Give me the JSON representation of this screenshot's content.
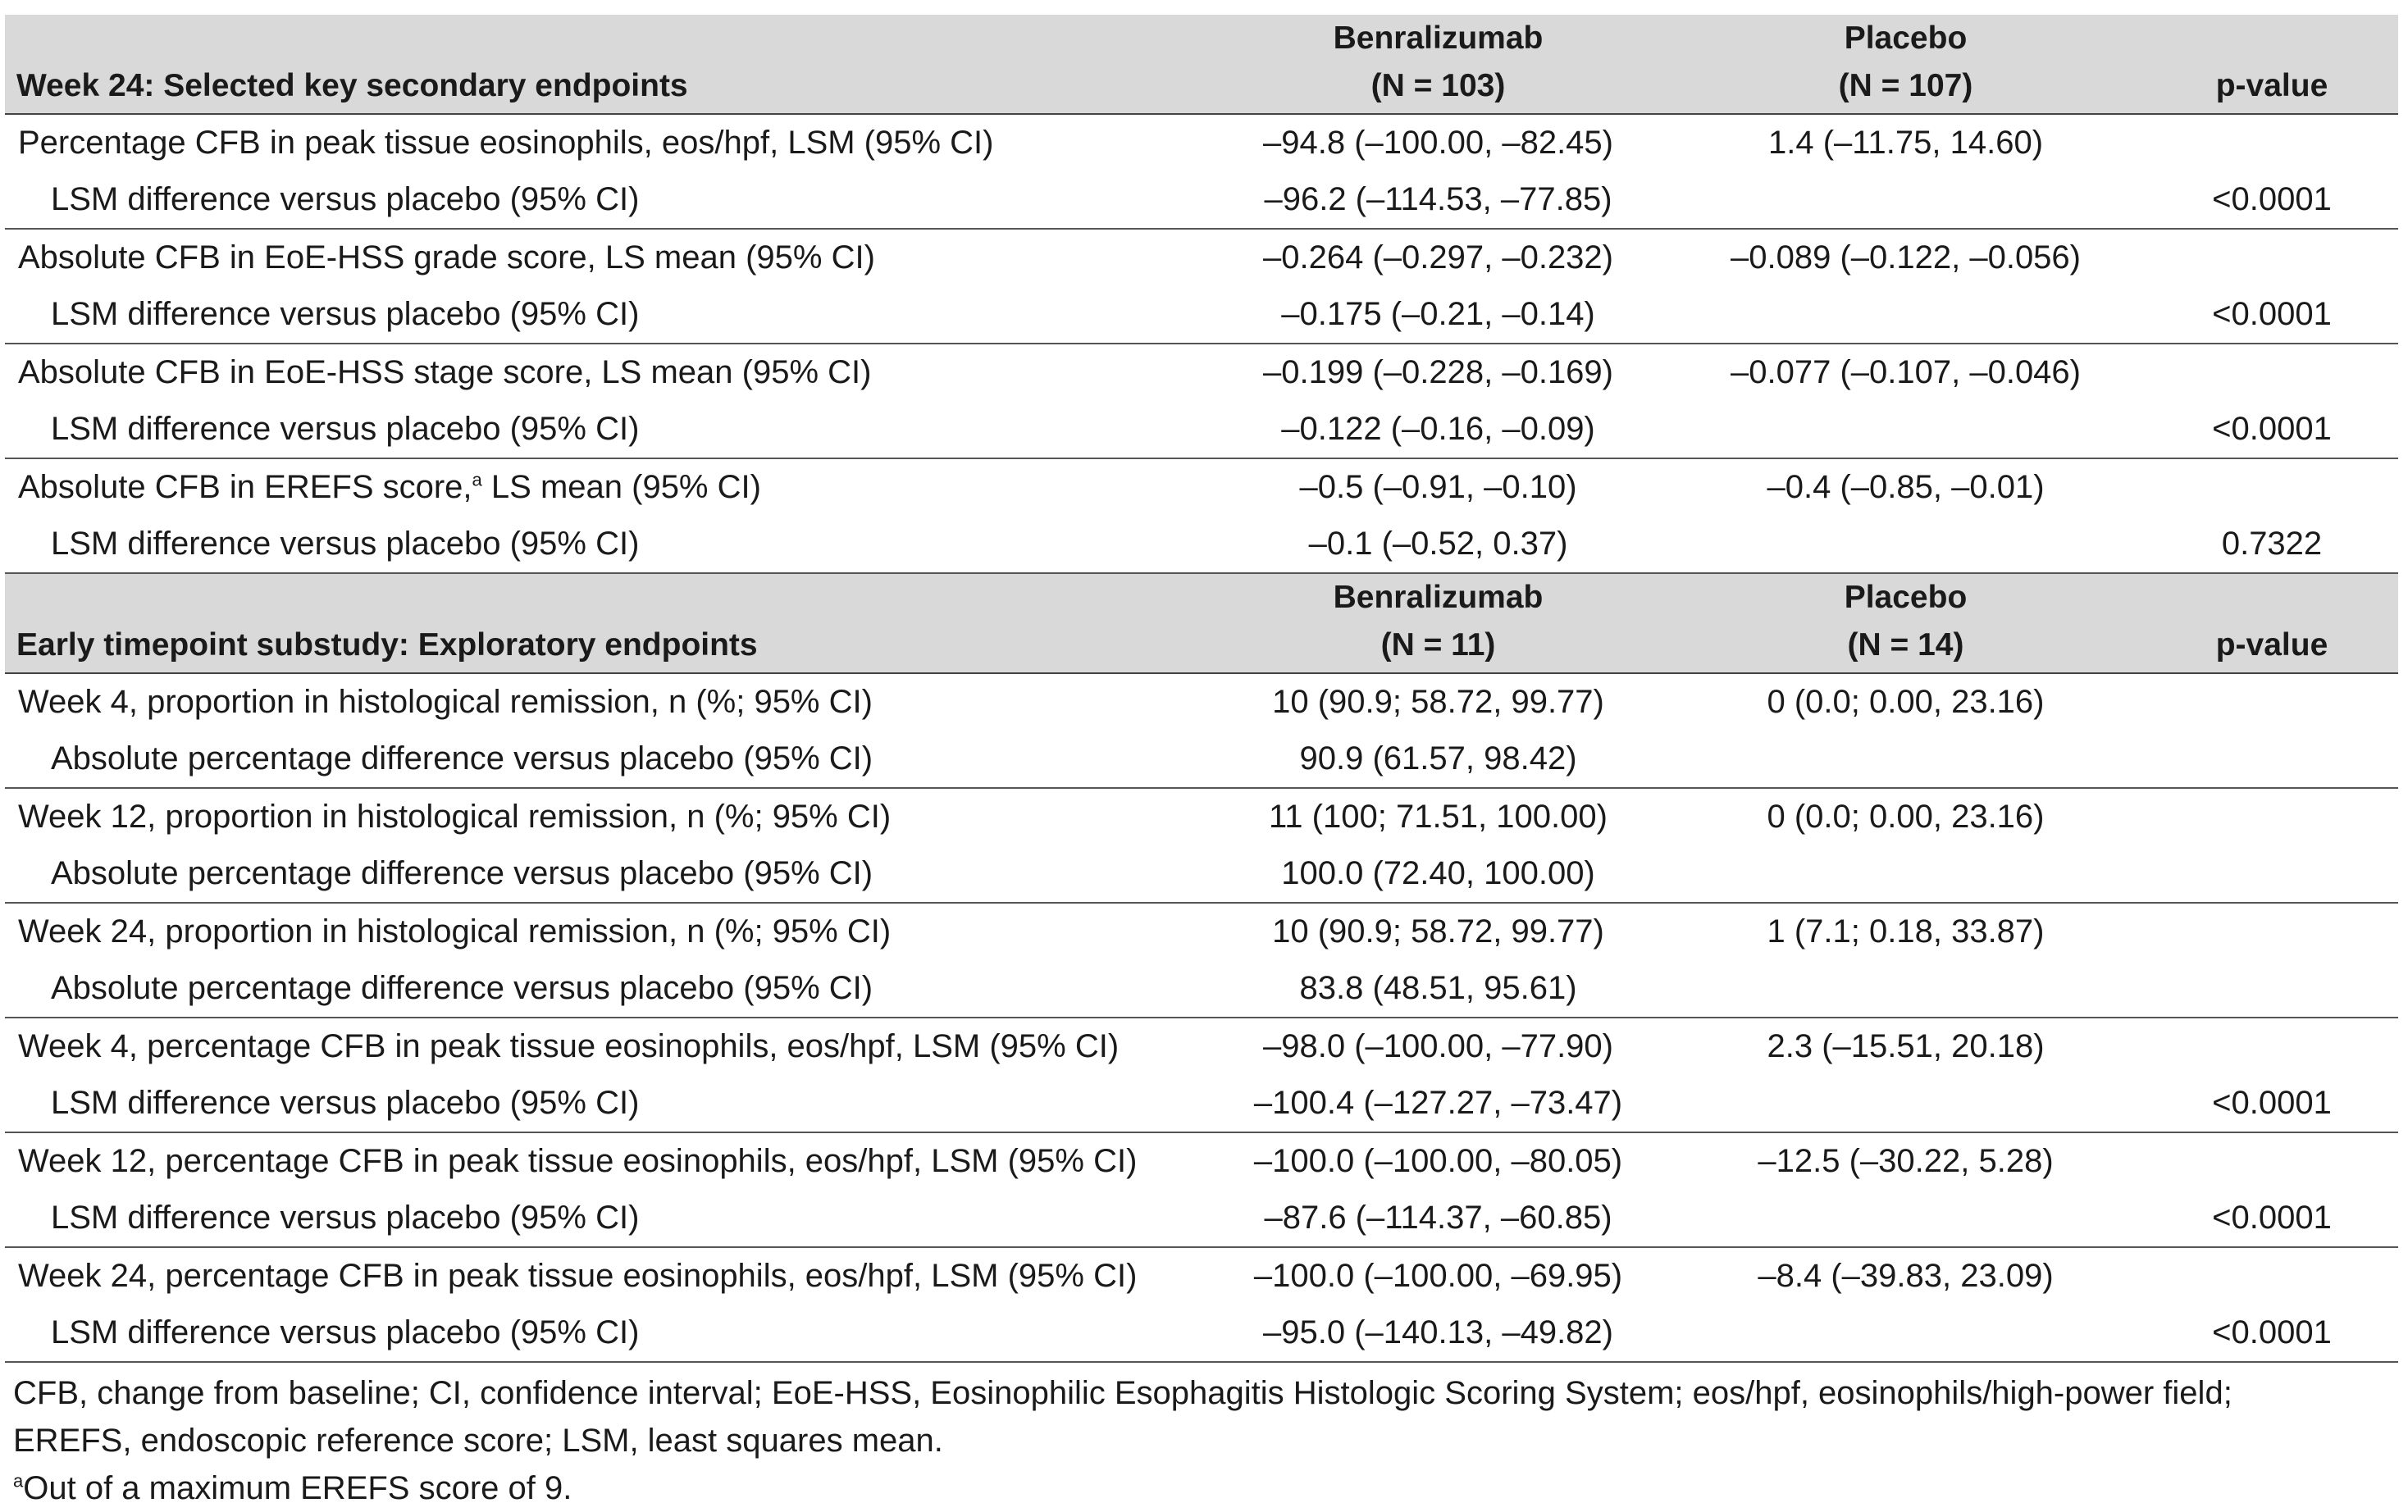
{
  "section1": {
    "title": "Week 24: Selected key secondary endpoints",
    "col_benra": "Benralizumab",
    "col_benra_n": "(N = 103)",
    "col_placebo": "Placebo",
    "col_placebo_n": "(N = 107)",
    "col_p": "p-value",
    "rows": [
      {
        "label": "Percentage CFB in peak tissue eosinophils, eos/hpf, LSM (95% CI)",
        "benra": "–94.8 (–100.00, –82.45)",
        "placebo": "1.4 (–11.75, 14.60)",
        "p": ""
      },
      {
        "label": "LSM difference versus placebo (95% CI)",
        "benra": "–96.2 (–114.53, –77.85)",
        "placebo": "",
        "p": "<0.0001"
      },
      {
        "label": "Absolute CFB in EoE-HSS grade score, LS mean (95% CI)",
        "benra": "–0.264 (–0.297, –0.232)",
        "placebo": "–0.089 (–0.122, –0.056)",
        "p": ""
      },
      {
        "label": "LSM difference versus placebo (95% CI)",
        "benra": "–0.175 (–0.21, –0.14)",
        "placebo": "",
        "p": "<0.0001"
      },
      {
        "label": "Absolute CFB in EoE-HSS stage score, LS mean (95% CI)",
        "benra": "–0.199 (–0.228, –0.169)",
        "placebo": "–0.077 (–0.107, –0.046)",
        "p": ""
      },
      {
        "label": "LSM difference versus placebo (95% CI)",
        "benra": "–0.122 (–0.16, –0.09)",
        "placebo": "",
        "p": "<0.0001"
      },
      {
        "label_pre": "Absolute CFB in EREFS score,",
        "label_sup": "a",
        "label_post": " LS mean (95% CI)",
        "benra": "–0.5 (–0.91, –0.10)",
        "placebo": "–0.4 (–0.85, –0.01)",
        "p": ""
      },
      {
        "label": "LSM difference versus placebo (95% CI)",
        "benra": "–0.1 (–0.52, 0.37)",
        "placebo": "",
        "p": "0.7322"
      }
    ]
  },
  "section2": {
    "title": "Early timepoint substudy: Exploratory endpoints",
    "col_benra": "Benralizumab",
    "col_benra_n": "(N = 11)",
    "col_placebo": "Placebo",
    "col_placebo_n": "(N = 14)",
    "col_p": "p-value",
    "rows": [
      {
        "label": "Week 4, proportion in histological remission, n (%; 95% CI)",
        "benra": "10 (90.9; 58.72, 99.77)",
        "placebo": "0 (0.0; 0.00, 23.16)",
        "p": ""
      },
      {
        "label": "Absolute percentage difference versus placebo (95% CI)",
        "benra": "90.9 (61.57, 98.42)",
        "placebo": "",
        "p": ""
      },
      {
        "label": "Week 12, proportion in histological remission, n (%; 95% CI)",
        "benra": "11 (100; 71.51, 100.00)",
        "placebo": "0 (0.0; 0.00, 23.16)",
        "p": ""
      },
      {
        "label": "Absolute percentage difference versus placebo (95% CI)",
        "benra": "100.0 (72.40, 100.00)",
        "placebo": "",
        "p": ""
      },
      {
        "label": "Week 24, proportion in histological remission, n (%; 95% CI)",
        "benra": "10 (90.9; 58.72, 99.77)",
        "placebo": "1 (7.1; 0.18, 33.87)",
        "p": ""
      },
      {
        "label": "Absolute percentage difference versus placebo (95% CI)",
        "benra": "83.8 (48.51, 95.61)",
        "placebo": "",
        "p": ""
      },
      {
        "label": "Week 4, percentage CFB in peak tissue eosinophils, eos/hpf, LSM (95% CI)",
        "benra": "–98.0 (–100.00, –77.90)",
        "placebo": "2.3 (–15.51, 20.18)",
        "p": ""
      },
      {
        "label": "LSM difference versus placebo (95% CI)",
        "benra": "–100.4 (–127.27, –73.47)",
        "placebo": "",
        "p": "<0.0001"
      },
      {
        "label": "Week 12, percentage CFB in peak tissue eosinophils, eos/hpf, LSM (95% CI)",
        "benra": "–100.0 (–100.00, –80.05)",
        "placebo": "–12.5 (–30.22, 5.28)",
        "p": ""
      },
      {
        "label": "LSM difference versus placebo (95% CI)",
        "benra": "–87.6 (–114.37, –60.85)",
        "placebo": "",
        "p": "<0.0001"
      },
      {
        "label": "Week 24, percentage CFB in peak tissue eosinophils, eos/hpf, LSM (95% CI)",
        "benra": "–100.0 (–100.00, –69.95)",
        "placebo": "–8.4 (–39.83, 23.09)",
        "p": ""
      },
      {
        "label": "LSM difference versus placebo (95% CI)",
        "benra": "–95.0 (–140.13, –49.82)",
        "placebo": "",
        "p": "<0.0001"
      }
    ]
  },
  "footnotes": {
    "abbrev_line1": "CFB, change from baseline; CI, confidence interval; EoE-HSS, Eosinophilic Esophagitis Histologic Scoring System; eos/hpf, eosinophils/high-power field;",
    "abbrev_line2": "EREFS, endoscopic reference score; LSM, least squares mean.",
    "note_a_mark": "a",
    "note_a_text": "Out of a maximum EREFS score of 9."
  }
}
